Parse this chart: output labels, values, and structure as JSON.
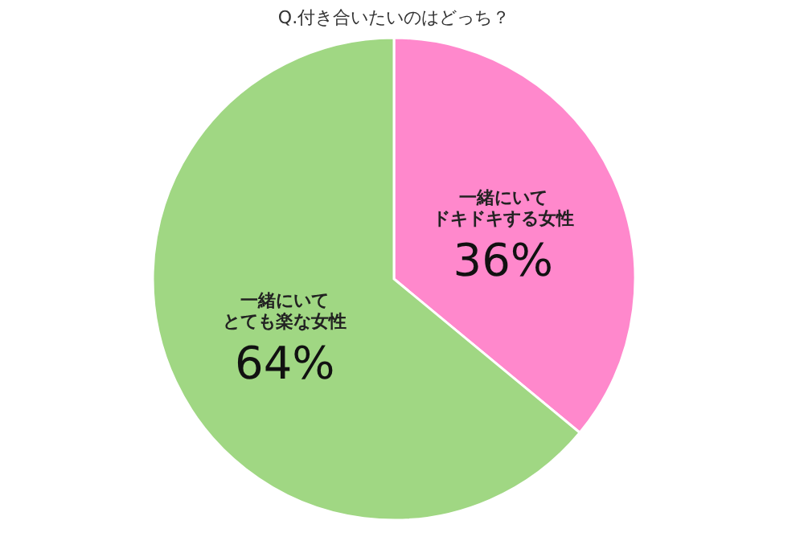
{
  "chart_data": {
    "type": "pie",
    "title": "Q.付き合いたいのはどっち？",
    "categories": [
      "一緒にいてドキドキする女性",
      "一緒にいてとても楽な女性"
    ],
    "values": [
      36,
      64
    ],
    "value_labels": [
      "36%",
      "64%"
    ],
    "colors": [
      "#ff88cc",
      "#a0d783"
    ],
    "legend": false
  }
}
